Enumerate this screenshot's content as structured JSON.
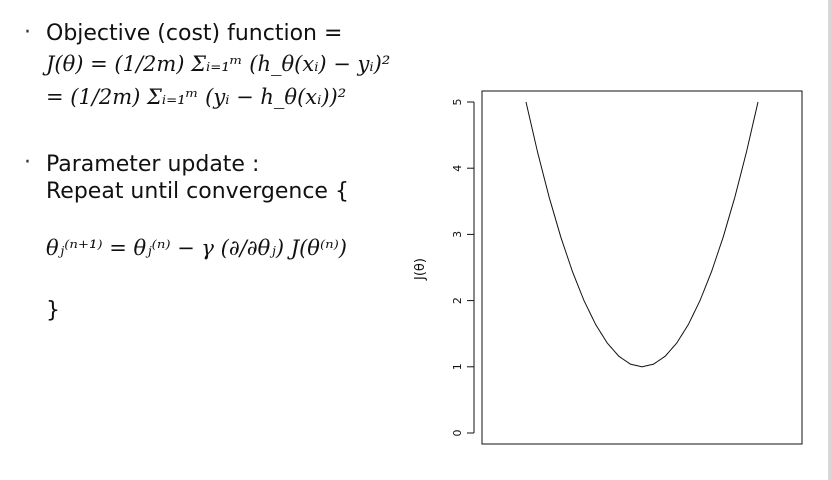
{
  "bullets": {
    "objective": {
      "label": "Objective (cost) function =",
      "formula_line1": "J(θ) = (1/2m) Σᵢ₌₁ᵐ (h_θ(xᵢ) − yᵢ)²",
      "formula_line2": "= (1/2m) Σᵢ₌₁ᵐ (yᵢ − h_θ(xᵢ))²"
    },
    "update": {
      "label": "Parameter update :",
      "repeat": "Repeat until convergence {",
      "rule": "θⱼ⁽ⁿ⁺¹⁾ = θⱼ⁽ⁿ⁾ − γ (∂/∂θⱼ) J(θ⁽ⁿ⁾)",
      "closing_brace": "}"
    }
  },
  "chart_data": {
    "type": "line",
    "title": "",
    "xlabel": "",
    "ylabel": "J(θ)",
    "ylim": [
      0,
      5
    ],
    "xlim": [
      0,
      10
    ],
    "y_ticks": [
      "0",
      "1",
      "2",
      "3",
      "4",
      "5"
    ],
    "x_ticks": [],
    "grid": false,
    "legend": "none",
    "series": [
      {
        "x": [
          0.0,
          0.5,
          1.0,
          1.5,
          2.0,
          2.5,
          3.0,
          3.5,
          4.0,
          4.5,
          5.0,
          5.5,
          6.0,
          6.5,
          7.0,
          7.5,
          8.0,
          8.5,
          9.0,
          9.5,
          10.0
        ],
        "values": [
          5.0,
          4.24,
          3.56,
          2.96,
          2.44,
          2.0,
          1.64,
          1.36,
          1.16,
          1.04,
          1.0,
          1.04,
          1.16,
          1.36,
          1.64,
          2.0,
          2.44,
          2.96,
          3.56,
          4.24,
          5.0
        ]
      }
    ],
    "line_color": "#111111"
  }
}
